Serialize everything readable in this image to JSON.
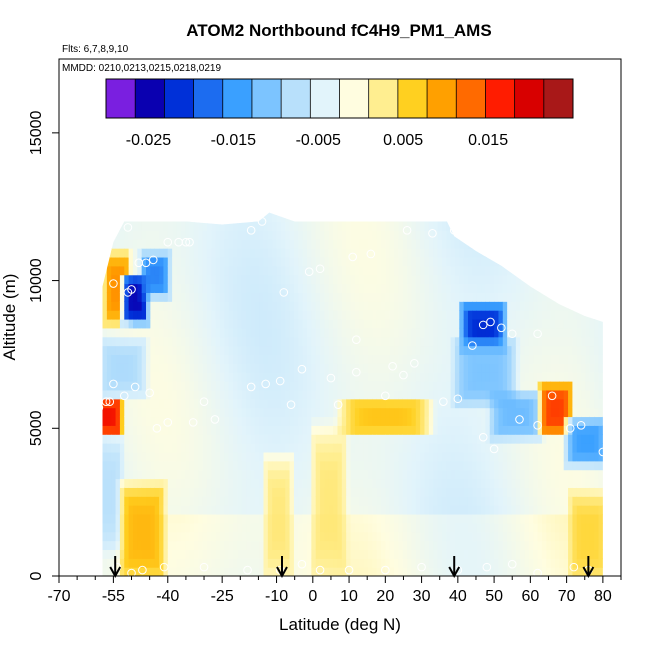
{
  "chart_data": {
    "type": "heatmap",
    "title": "ATOM2 Northbound fC4H9_PM1_AMS",
    "flights_label": "Flts: 6,7,8,9,10",
    "dates_label": "MMDD: 0210,0213,0215,0218,0219",
    "xlabel": "Latitude (deg N)",
    "ylabel": "Altitude (m)",
    "xlim": [
      -70,
      85
    ],
    "ylim": [
      0,
      17500
    ],
    "x_ticks": [
      -70,
      -55,
      -40,
      -25,
      -10,
      0,
      10,
      20,
      30,
      40,
      50,
      60,
      70,
      80
    ],
    "x_tick_labels": [
      "-70",
      "-55",
      "-40",
      "-25",
      "-10",
      "0",
      "10",
      "20",
      "30",
      "40",
      "50",
      "60",
      "70",
      "80"
    ],
    "y_ticks": [
      0,
      5000,
      10000,
      15000
    ],
    "y_tick_labels": [
      "0",
      "5000",
      "10000",
      "15000"
    ],
    "colorbar": {
      "range": [
        -0.03,
        0.025
      ],
      "tick_values": [
        -0.025,
        -0.015,
        -0.005,
        0.005,
        0.015
      ],
      "tick_labels": [
        "-0.025",
        "-0.015",
        "-0.005",
        "0.005",
        "0.015"
      ],
      "colors": [
        "#7a1fe0",
        "#0a00b0",
        "#0030d8",
        "#1c6cf0",
        "#3aa0ff",
        "#7cc4ff",
        "#b8e0fb",
        "#e2f4fb",
        "#fffde0",
        "#ffee90",
        "#ffd020",
        "#ffa000",
        "#ff6a00",
        "#ff1c00",
        "#d80000",
        "#a81818"
      ]
    },
    "arrow_latitudes": [
      -54.5,
      -8.5,
      39,
      76
    ],
    "coverage": {
      "lat_range": [
        -58,
        80
      ],
      "alt_top_by_lat": [
        [
          -58,
          9800
        ],
        [
          -55,
          11300
        ],
        [
          -52,
          12000
        ],
        [
          -45,
          12000
        ],
        [
          -35,
          12000
        ],
        [
          -25,
          11900
        ],
        [
          -15,
          12000
        ],
        [
          -12,
          12300
        ],
        [
          -5,
          12000
        ],
        [
          5,
          12000
        ],
        [
          20,
          12000
        ],
        [
          37,
          12000
        ],
        [
          39,
          11500
        ],
        [
          45,
          11000
        ],
        [
          52,
          10500
        ],
        [
          60,
          9800
        ],
        [
          68,
          9200
        ],
        [
          75,
          8800
        ],
        [
          80,
          8600
        ]
      ]
    },
    "features": [
      {
        "lat": [
          -56,
          -52
        ],
        "alt": [
          8700,
          10800
        ],
        "value": 0.012
      },
      {
        "lat": [
          -51,
          -47
        ],
        "alt": [
          8800,
          10000
        ],
        "value": -0.027
      },
      {
        "lat": [
          -46,
          -41
        ],
        "alt": [
          9700,
          10700
        ],
        "value": -0.018
      },
      {
        "lat": [
          -59,
          -54
        ],
        "alt": [
          5000,
          5800
        ],
        "value": 0.02
      },
      {
        "lat": [
          -58,
          -47
        ],
        "alt": [
          6300,
          7800
        ],
        "value": -0.009
      },
      {
        "lat": [
          -59,
          -54
        ],
        "alt": [
          1000,
          4500
        ],
        "value": -0.008
      },
      {
        "lat": [
          -52,
          -42
        ],
        "alt": [
          0,
          3000
        ],
        "value": 0.009
      },
      {
        "lat": [
          8,
          32
        ],
        "alt": [
          5000,
          5800
        ],
        "value": 0.008
      },
      {
        "lat": [
          42,
          52
        ],
        "alt": [
          7800,
          9000
        ],
        "value": -0.024
      },
      {
        "lat": [
          40,
          55
        ],
        "alt": [
          6000,
          7800
        ],
        "value": -0.012
      },
      {
        "lat": [
          50,
          62
        ],
        "alt": [
          4900,
          6000
        ],
        "value": -0.013
      },
      {
        "lat": [
          64,
          70
        ],
        "alt": [
          5000,
          6300
        ],
        "value": 0.017
      },
      {
        "lat": [
          71,
          80
        ],
        "alt": [
          4000,
          5100
        ],
        "value": -0.016
      },
      {
        "lat": [
          72,
          80
        ],
        "alt": [
          0,
          2700
        ],
        "value": 0.006
      },
      {
        "lat": [
          -12,
          -7
        ],
        "alt": [
          0,
          4000
        ],
        "value": 0.004
      },
      {
        "lat": [
          1,
          8
        ],
        "alt": [
          0,
          5000
        ],
        "value": 0.004
      }
    ],
    "sample_points": [
      [
        -51,
        11800
      ],
      [
        -48,
        10600
      ],
      [
        -46,
        10600
      ],
      [
        -44,
        10700
      ],
      [
        -40,
        11300
      ],
      [
        -37,
        11300
      ],
      [
        -35,
        11300
      ],
      [
        -34,
        11300
      ],
      [
        -17,
        11700
      ],
      [
        -14,
        12000
      ],
      [
        -50,
        9700
      ],
      [
        -51,
        9600
      ],
      [
        -8,
        9600
      ],
      [
        -1,
        10300
      ],
      [
        2,
        10400
      ],
      [
        11,
        10800
      ],
      [
        16,
        10900
      ],
      [
        26,
        11700
      ],
      [
        33,
        11600
      ],
      [
        39,
        11700
      ],
      [
        -55,
        9900
      ],
      [
        47,
        8500
      ],
      [
        49,
        8600
      ],
      [
        52,
        8400
      ],
      [
        55,
        8200
      ],
      [
        62,
        8200
      ],
      [
        44,
        7800
      ],
      [
        -55,
        6500
      ],
      [
        -52,
        6100
      ],
      [
        -49,
        6400
      ],
      [
        -56,
        5900
      ],
      [
        -59,
        5700
      ],
      [
        -57,
        5900
      ],
      [
        -43,
        5000
      ],
      [
        -40,
        5200
      ],
      [
        -33,
        5200
      ],
      [
        -30,
        5900
      ],
      [
        -27,
        5300
      ],
      [
        -17,
        6400
      ],
      [
        -13,
        6500
      ],
      [
        -9,
        6600
      ],
      [
        -3,
        7000
      ],
      [
        5,
        6700
      ],
      [
        12,
        6900
      ],
      [
        20,
        6100
      ],
      [
        22,
        7100
      ],
      [
        25,
        6800
      ],
      [
        28,
        7200
      ],
      [
        36,
        5900
      ],
      [
        40,
        6000
      ],
      [
        47,
        4700
      ],
      [
        50,
        4300
      ],
      [
        57,
        5300
      ],
      [
        62,
        5100
      ],
      [
        66,
        6100
      ],
      [
        71,
        5000
      ],
      [
        74,
        5100
      ],
      [
        80,
        4200
      ],
      [
        -54,
        300
      ],
      [
        -50,
        100
      ],
      [
        -47,
        200
      ],
      [
        -41,
        300
      ],
      [
        -30,
        300
      ],
      [
        -18,
        200
      ],
      [
        -9,
        200
      ],
      [
        -3,
        400
      ],
      [
        2,
        200
      ],
      [
        10,
        200
      ],
      [
        20,
        200
      ],
      [
        30,
        300
      ],
      [
        40,
        200
      ],
      [
        48,
        300
      ],
      [
        55,
        400
      ],
      [
        62,
        100
      ],
      [
        72,
        300
      ],
      [
        76,
        200
      ],
      [
        -45,
        6200
      ],
      [
        -6,
        5800
      ],
      [
        7,
        5800
      ],
      [
        12,
        8000
      ]
    ]
  }
}
